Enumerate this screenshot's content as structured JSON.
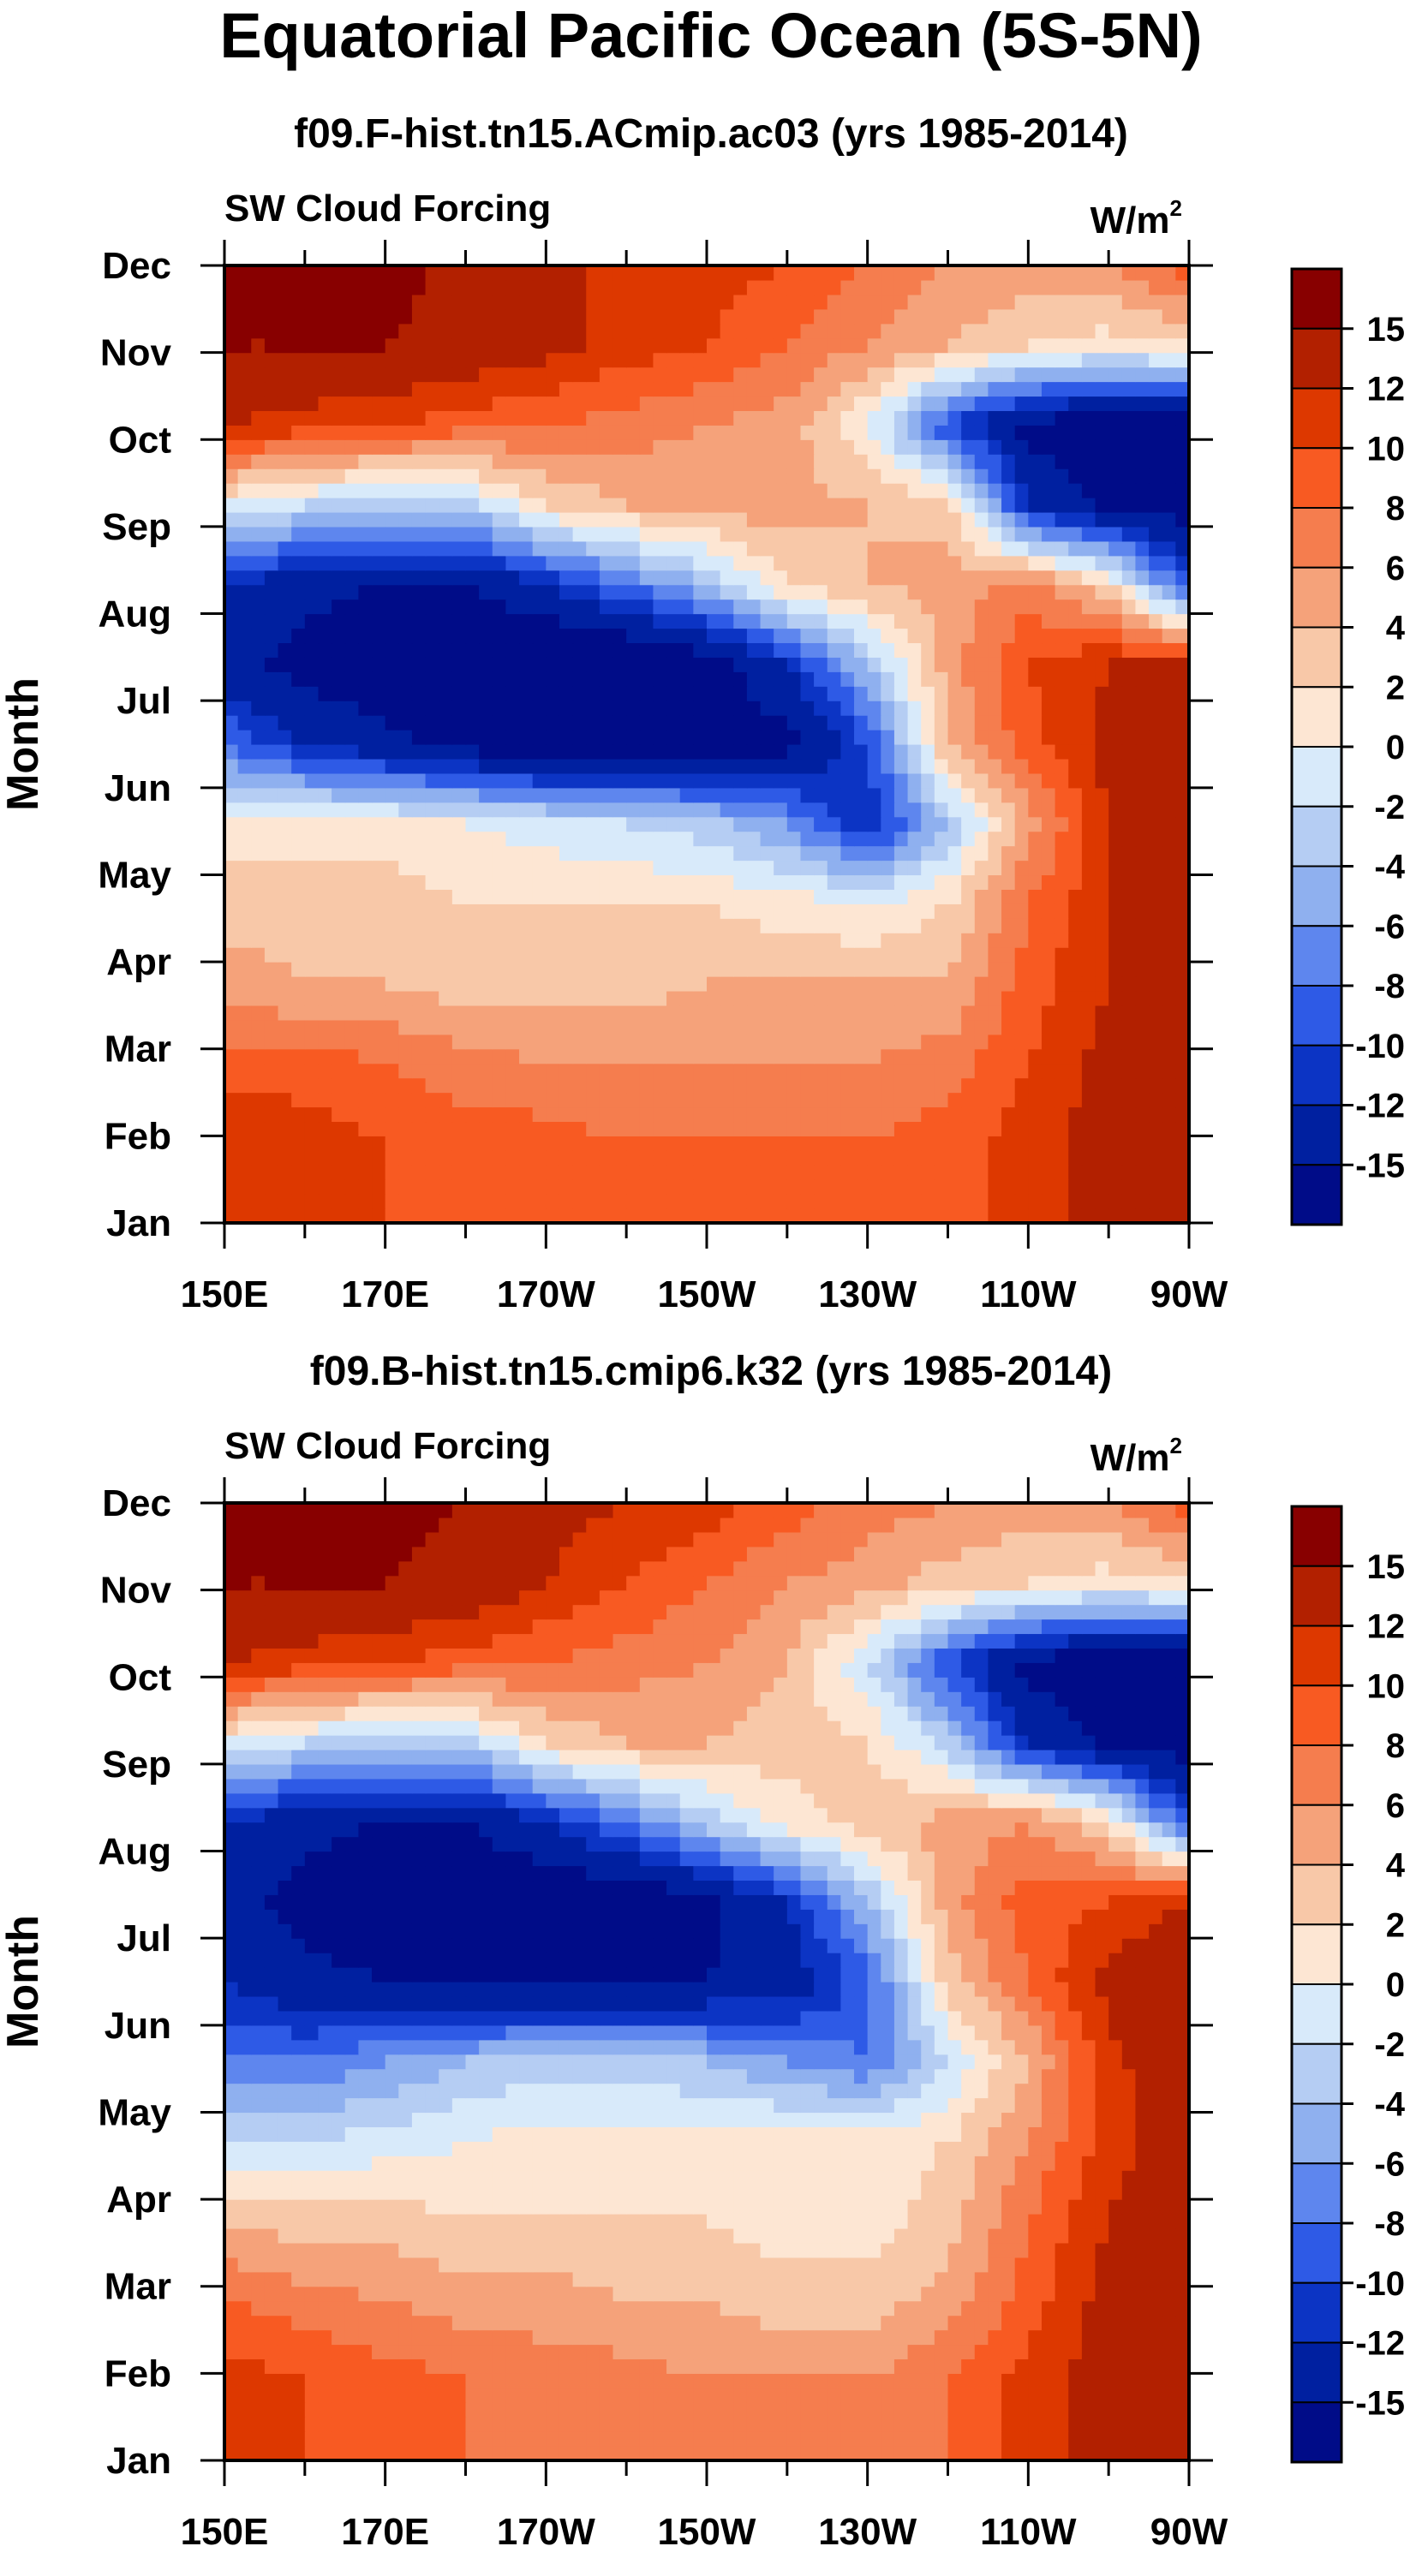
{
  "main_title": "Equatorial Pacific Ocean (5S-5N)",
  "chart_data": [
    {
      "type": "heatmap",
      "title": "f09.F-hist.tn15.ACmip.ac03 (yrs 1985-2014)",
      "variable": "SW Cloud Forcing",
      "units_base": "W/m",
      "units_sup": "2",
      "ylabel": "Month",
      "xlabel": "",
      "x_ticks": [
        "150E",
        "170E",
        "170W",
        "150W",
        "130W",
        "110W",
        "90W"
      ],
      "x_range": [
        150,
        270
      ],
      "y_ticks": [
        "Jan",
        "Feb",
        "Mar",
        "Apr",
        "May",
        "Jun",
        "Jul",
        "Aug",
        "Sep",
        "Oct",
        "Nov",
        "Dec"
      ],
      "colorbar_labels": [
        "15",
        "12",
        "10",
        "8",
        "6",
        "4",
        "2",
        "0",
        "-2",
        "-4",
        "-6",
        "-8",
        "-10",
        "-12",
        "-15"
      ],
      "colorbar_colors": [
        "#880000",
        "#b22000",
        "#dd3800",
        "#f85a22",
        "#f57d4e",
        "#f5a27a",
        "#f8c8a8",
        "#fde6d3",
        "#d8eafa",
        "#b5cdf3",
        "#8fb0ef",
        "#5e86ee",
        "#2e5ae6",
        "#0c34c4",
        "#0020a0",
        "#000c88"
      ],
      "grid": [
        [
          12,
          11,
          10,
          9,
          8,
          8,
          8,
          8,
          8,
          9,
          11,
          13,
          14
        ],
        [
          12,
          11,
          10,
          9,
          9,
          8,
          8,
          8,
          8,
          9,
          11,
          13,
          14
        ],
        [
          9,
          9,
          8,
          7,
          6,
          6,
          6,
          6,
          6,
          7,
          10,
          13,
          14
        ],
        [
          5,
          4,
          4,
          3,
          3,
          3,
          4,
          4,
          4,
          4,
          9,
          12,
          14
        ],
        [
          3,
          3,
          3,
          2,
          2,
          2,
          2,
          1,
          0,
          2,
          8,
          12,
          14
        ],
        [
          1,
          1,
          1,
          0,
          -1,
          -2,
          -3,
          -6,
          -12,
          -4,
          5,
          12,
          15
        ],
        [
          -8,
          -12,
          -14,
          -16,
          -18,
          -18,
          -17,
          -16,
          -10,
          4,
          9,
          13,
          15
        ],
        [
          -14,
          -16,
          -18,
          -19,
          -19,
          -19,
          -17,
          -12,
          -4,
          5,
          10,
          12,
          13
        ],
        [
          -12,
          -14,
          -15,
          -15,
          -12,
          -8,
          -4,
          2,
          4,
          5,
          7,
          2,
          -10
        ],
        [
          0,
          -2,
          -4,
          -3,
          2,
          4,
          5,
          5,
          4,
          3,
          -12,
          -16,
          -17
        ],
        [
          12,
          11,
          10,
          9,
          8,
          7,
          6,
          5,
          0,
          -10,
          -16,
          -18,
          -18
        ],
        [
          15,
          15,
          15,
          14,
          13,
          11,
          10,
          8,
          6,
          4,
          2,
          1,
          2
        ],
        [
          16,
          16,
          16,
          14,
          12,
          12,
          11,
          10,
          8,
          6,
          5,
          6,
          9
        ]
      ]
    },
    {
      "type": "heatmap",
      "title": "f09.B-hist.tn15.cmip6.k32 (yrs 1985-2014)",
      "variable": "SW Cloud Forcing",
      "units_base": "W/m",
      "units_sup": "2",
      "ylabel": "Month",
      "xlabel": "",
      "x_ticks": [
        "150E",
        "170E",
        "170W",
        "150W",
        "130W",
        "110W",
        "90W"
      ],
      "x_range": [
        150,
        270
      ],
      "y_ticks": [
        "Jan",
        "Feb",
        "Mar",
        "Apr",
        "May",
        "Jun",
        "Jul",
        "Aug",
        "Sep",
        "Oct",
        "Nov",
        "Dec"
      ],
      "colorbar_labels": [
        "15",
        "12",
        "10",
        "8",
        "6",
        "4",
        "2",
        "0",
        "-2",
        "-4",
        "-6",
        "-8",
        "-10",
        "-12",
        "-15"
      ],
      "colorbar_colors": [
        "#880000",
        "#b22000",
        "#dd3800",
        "#f85a22",
        "#f57d4e",
        "#f5a27a",
        "#f8c8a8",
        "#fde6d3",
        "#d8eafa",
        "#b5cdf3",
        "#8fb0ef",
        "#5e86ee",
        "#2e5ae6",
        "#0c34c4",
        "#0020a0",
        "#000c88"
      ],
      "grid": [
        [
          11,
          10,
          9,
          8,
          7,
          7,
          7,
          7,
          7,
          8,
          11,
          13,
          14
        ],
        [
          11,
          10,
          9,
          8,
          7,
          7,
          6,
          6,
          6,
          8,
          11,
          13,
          14
        ],
        [
          8,
          7,
          6,
          5,
          5,
          4,
          4,
          3,
          3,
          5,
          9,
          13,
          14
        ],
        [
          4,
          3,
          3,
          2,
          2,
          2,
          2,
          1,
          1,
          3,
          8,
          12,
          14
        ],
        [
          -2,
          -2,
          -1,
          0,
          1,
          1,
          1,
          1,
          1,
          2,
          6,
          11,
          14
        ],
        [
          -8,
          -8,
          -6,
          -4,
          -3,
          -3,
          -4,
          -6,
          -8,
          -2,
          4,
          11,
          15
        ],
        [
          -12,
          -14,
          -15,
          -16,
          -16,
          -16,
          -15,
          -14,
          -9,
          3,
          8,
          13,
          15
        ],
        [
          -14,
          -16,
          -18,
          -18,
          -18,
          -18,
          -16,
          -12,
          -4,
          5,
          9,
          10,
          12
        ],
        [
          -12,
          -14,
          -15,
          -15,
          -12,
          -8,
          -3,
          1,
          3,
          5,
          6,
          2,
          -10
        ],
        [
          0,
          -2,
          -4,
          -3,
          2,
          4,
          4,
          3,
          2,
          -3,
          -12,
          -16,
          -17
        ],
        [
          12,
          11,
          10,
          9,
          8,
          7,
          6,
          4,
          -2,
          -10,
          -16,
          -18,
          -18
        ],
        [
          15,
          15,
          15,
          14,
          12,
          10,
          8,
          6,
          5,
          3,
          2,
          1,
          2
        ],
        [
          16,
          16,
          16,
          15,
          13,
          12,
          11,
          9,
          7,
          6,
          5,
          6,
          9
        ]
      ]
    }
  ]
}
